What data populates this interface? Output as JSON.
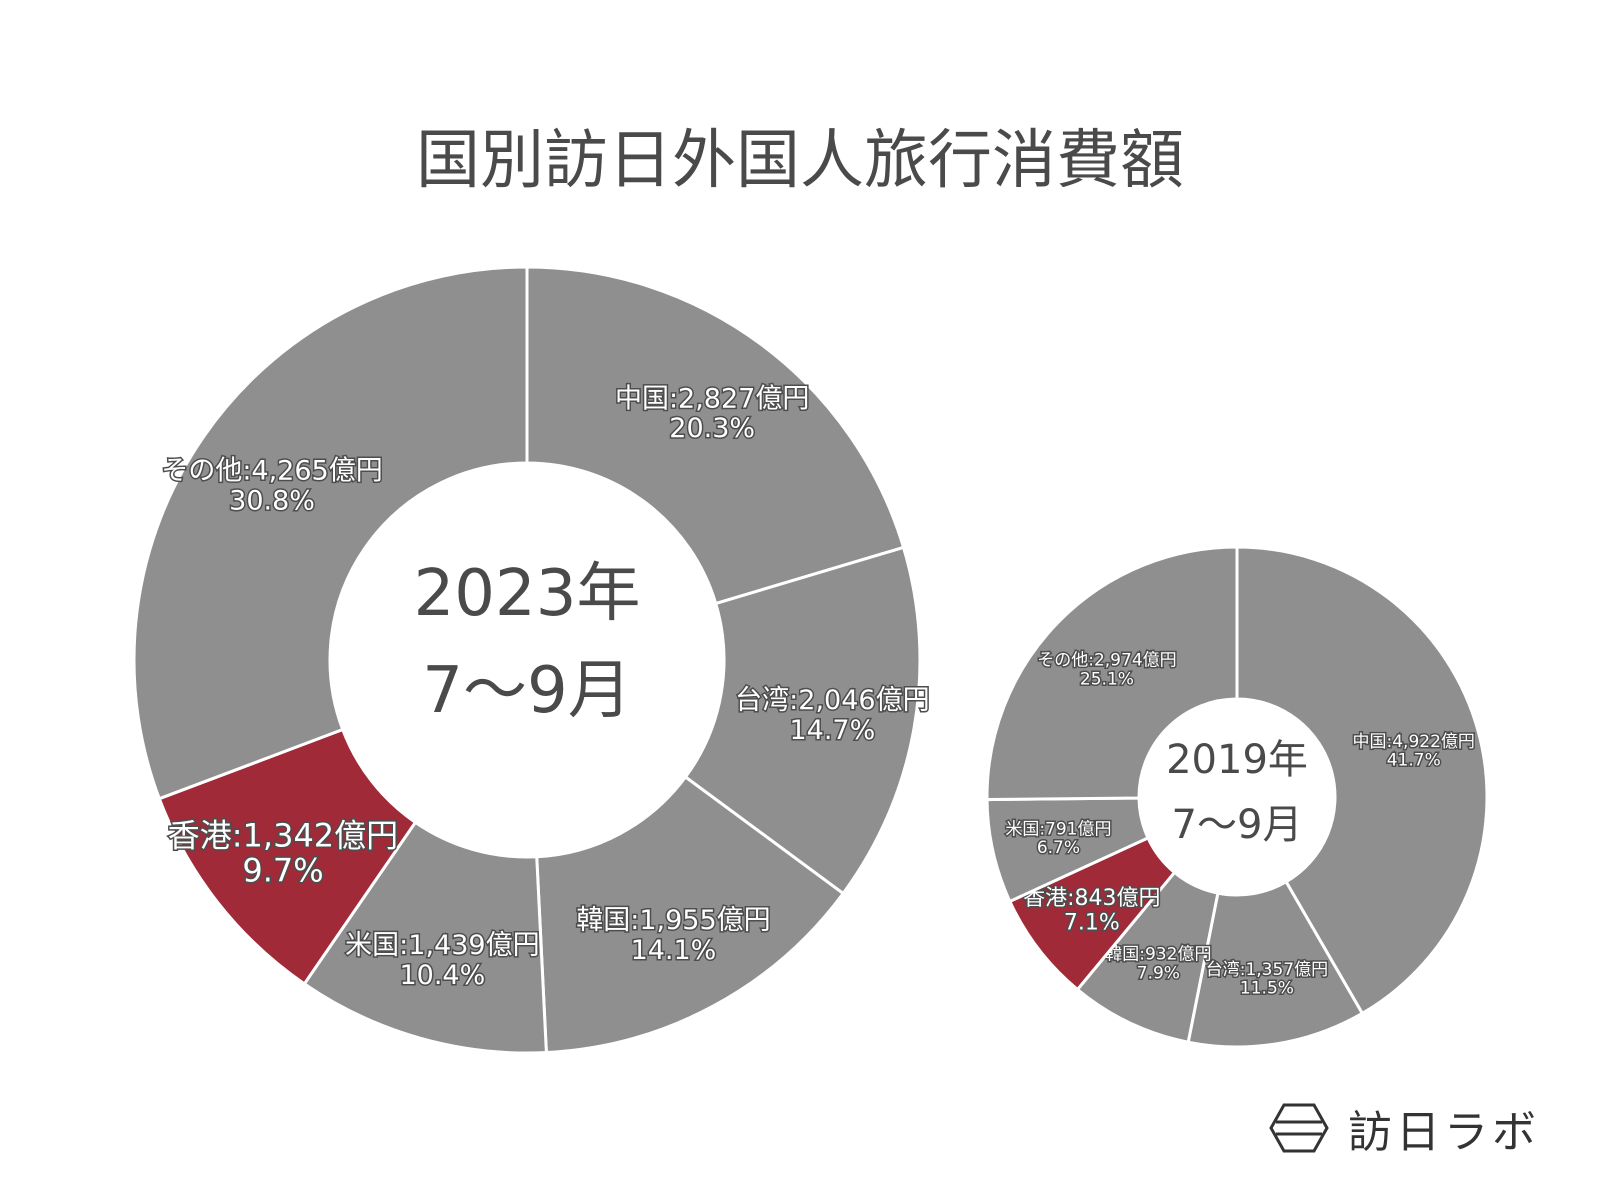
{
  "title": "国別訪日外国人旅行消費額",
  "brand": {
    "name": "訪日ラボ",
    "logo_icon": "hexagon-logo-icon"
  },
  "colors": {
    "slice": "#8f8f8f",
    "highlight": "#a02a38",
    "text": "#4a4a4a"
  },
  "chart_data": [
    {
      "type": "pie",
      "center_label": [
        "2023年",
        "7～9月"
      ],
      "unit": "億円",
      "slices": [
        {
          "name": "中国",
          "value": 2827,
          "percent": "20.3%",
          "label": "中国:2,827億円"
        },
        {
          "name": "台湾",
          "value": 2046,
          "percent": "14.7%",
          "label": "台湾:2,046億円"
        },
        {
          "name": "韓国",
          "value": 1955,
          "percent": "14.1%",
          "label": "韓国:1,955億円"
        },
        {
          "name": "米国",
          "value": 1439,
          "percent": "10.4%",
          "label": "米国:1,439億円"
        },
        {
          "name": "香港",
          "value": 1342,
          "percent": "9.7%",
          "label": "香港:1,342億円",
          "highlight": true
        },
        {
          "name": "その他",
          "value": 4265,
          "percent": "30.8%",
          "label": "その他:4,265億円"
        }
      ]
    },
    {
      "type": "pie",
      "center_label": [
        "2019年",
        "7～9月"
      ],
      "unit": "億円",
      "slices": [
        {
          "name": "中国",
          "value": 4922,
          "percent": "41.7%",
          "label": "中国:4,922億円"
        },
        {
          "name": "台湾",
          "value": 1357,
          "percent": "11.5%",
          "label": "台湾:1,357億円"
        },
        {
          "name": "韓国",
          "value": 932,
          "percent": "7.9%",
          "label": "韓国:932億円"
        },
        {
          "name": "香港",
          "value": 843,
          "percent": "7.1%",
          "label": "香港:843億円",
          "highlight": true
        },
        {
          "name": "米国",
          "value": 791,
          "percent": "6.7%",
          "label": "米国:791億円"
        },
        {
          "name": "その他",
          "value": 2974,
          "percent": "25.1%",
          "label": "その他:2,974億円"
        }
      ]
    }
  ]
}
